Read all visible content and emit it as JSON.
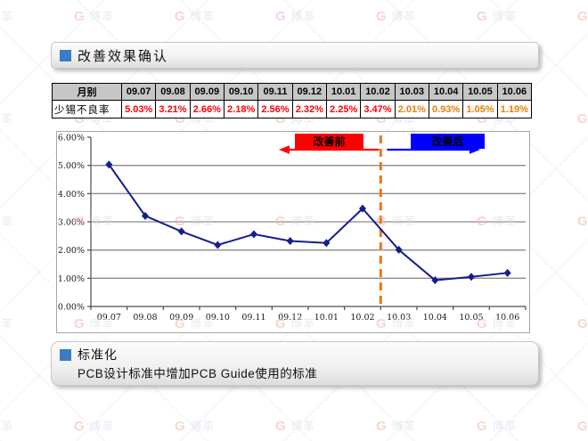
{
  "watermark": {
    "logo_letter": "G",
    "brand_text": "博革",
    "logo_color": "#f2b4ac",
    "text_color": "#d9d9e8",
    "rows": 5,
    "cols": 7,
    "x_start": -30,
    "x_step": 113,
    "y_start": 8,
    "y_step": 115
  },
  "sections": {
    "bullet_color": "#3b7dc5",
    "effect_title": "改善效果确认",
    "standard_title": "标准化",
    "standard_body": "PCB设计标准中增加PCB Guide使用的标准"
  },
  "table": {
    "header_bg": "#c6c6c6",
    "corner_label": "月别",
    "row_label": "少锡不良率",
    "months": [
      "09.07",
      "09.08",
      "09.09",
      "09.10",
      "09.11",
      "09.12",
      "10.01",
      "10.02",
      "10.03",
      "10.04",
      "10.05",
      "10.06"
    ],
    "values": [
      "5.03%",
      "3.21%",
      "2.66%",
      "2.18%",
      "2.56%",
      "2.32%",
      "2.25%",
      "3.47%",
      "2.01%",
      "0.93%",
      "1.05%",
      "1.19%"
    ],
    "value_colors": [
      "#ff0000",
      "#ff0000",
      "#ff0000",
      "#ff0000",
      "#ff0000",
      "#ff0000",
      "#ff0000",
      "#ff0000",
      "#f07d00",
      "#f07d00",
      "#f07d00",
      "#f07d00"
    ]
  },
  "chart_data": {
    "type": "line",
    "title": "",
    "xlabel": "",
    "ylabel": "",
    "categories": [
      "09.07",
      "09.08",
      "09.09",
      "09.10",
      "09.11",
      "09.12",
      "10.01",
      "10.02",
      "10.03",
      "10.04",
      "10.05",
      "10.06"
    ],
    "series": [
      {
        "name": "少锡不良率",
        "values": [
          5.03,
          3.21,
          2.66,
          2.18,
          2.56,
          2.32,
          2.25,
          3.47,
          2.01,
          0.93,
          1.05,
          1.19
        ]
      }
    ],
    "ylim": [
      0,
      6
    ],
    "ytick_step": 1,
    "ytick_suffix": "%",
    "grid": true,
    "legend": "none",
    "line_color": "#141e8c",
    "marker": "diamond",
    "axis_color": "#4d4d4d",
    "grid_color": "#8c8c8c",
    "annotations": {
      "before_label": "改善前",
      "before_color": "#ff0000",
      "after_label": "改善后",
      "after_color": "#0000ff",
      "divider_between": [
        "10.02",
        "10.03"
      ],
      "divider_color": "#e87817"
    }
  }
}
